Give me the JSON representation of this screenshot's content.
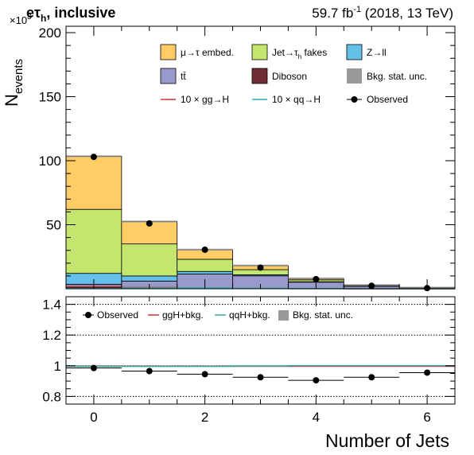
{
  "header": {
    "channel_prefix": "eτ",
    "channel_sub": "h",
    "channel_suffix": ", inclusive",
    "lumi": "59.7 fb",
    "lumi_sup": "-1",
    "lumi_suffix": " (2018, 13 TeV)"
  },
  "chart_data": [
    {
      "type": "bar",
      "stacked": true,
      "xlabel": "Number of Jets",
      "ylabel": "N",
      "ylabel_sub": "events",
      "y_multiplier_base": "×10",
      "y_multiplier_exp": "3",
      "ylim": [
        0,
        205
      ],
      "xlim": [
        -0.5,
        6.5
      ],
      "x_ticks": [
        0,
        2,
        4,
        6
      ],
      "y_ticks": [
        50,
        100,
        150,
        200
      ],
      "x": [
        0,
        1,
        2,
        3,
        4,
        5,
        6
      ],
      "series": [
        {
          "name": "Diboson",
          "color": "#6f2d35",
          "values": [
            1.0,
            0.8,
            0.5,
            0.3,
            0.15,
            0.05,
            0.02
          ]
        },
        {
          "name": "tt̄",
          "color": "#9999cc",
          "values": [
            2.5,
            5.2,
            11.0,
            9.8,
            5.0,
            1.8,
            0.6
          ]
        },
        {
          "name": "Z→ll",
          "color": "#64c0e8",
          "values": [
            8.5,
            4.0,
            2.0,
            0.8,
            0.3,
            0.1,
            0.03
          ]
        },
        {
          "name": "Jet→τ_h fakes",
          "color": "#c4e66f",
          "values": [
            50.0,
            25.0,
            9.5,
            4.0,
            1.5,
            0.5,
            0.15
          ]
        },
        {
          "name": "μ→τ embed.",
          "color": "#ffcc66",
          "values": [
            41.5,
            17.5,
            7.5,
            3.2,
            1.1,
            0.4,
            0.1
          ]
        }
      ],
      "signals": [
        {
          "name": "10×gg→H",
          "color": "#cc3333",
          "values": [
            1.8,
            1.0,
            0.5,
            0.2,
            0.08,
            0.03,
            0.01
          ]
        },
        {
          "name": "10×qq→H",
          "color": "#33aaaa",
          "values": [
            0.3,
            0.6,
            0.6,
            0.4,
            0.2,
            0.07,
            0.02
          ]
        }
      ],
      "observed": {
        "name": "Observed",
        "values": [
          103,
          51,
          30.5,
          16.5,
          7.5,
          2.3,
          0.5
        ]
      },
      "legend": [
        {
          "label": "μ→τ embed.",
          "kind": "fill",
          "color": "#ffcc66"
        },
        {
          "label": "Jet→τ",
          "sub": "h",
          "suffix": " fakes",
          "kind": "fill",
          "color": "#c4e66f"
        },
        {
          "label": "Z→ll",
          "kind": "fill",
          "color": "#64c0e8"
        },
        {
          "label": "tt̄",
          "kind": "fill",
          "color": "#9999cc"
        },
        {
          "label": "Diboson",
          "kind": "fill",
          "color": "#6f2d35"
        },
        {
          "label": "Bkg. stat. unc.",
          "kind": "fill",
          "color": "#999999"
        },
        {
          "label": "10 × gg→H",
          "kind": "line",
          "color": "#cc3333"
        },
        {
          "label": "10 × qq→H",
          "kind": "line",
          "color": "#33aaaa"
        },
        {
          "label": "Observed",
          "kind": "marker",
          "color": "#000000"
        }
      ]
    },
    {
      "type": "scatter",
      "panel": "ratio",
      "ylim": [
        0.75,
        1.45
      ],
      "y_ticks": [
        0.8,
        1,
        1.2,
        1.4
      ],
      "y_tick_labels": [
        "0.8",
        "1",
        "1.2",
        "1.4"
      ],
      "x": [
        0,
        1,
        2,
        3,
        4,
        5,
        6
      ],
      "observed_ratio": [
        0.985,
        0.965,
        0.945,
        0.925,
        0.905,
        0.925,
        0.955
      ],
      "gg_ratio": [
        0.996,
        0.996,
        0.996,
        0.996,
        0.996,
        0.996,
        0.996
      ],
      "qq_ratio": [
        0.996,
        0.996,
        0.996,
        0.998,
        1.0,
        1.0,
        1.0
      ],
      "legend": [
        {
          "label": "Observed",
          "kind": "marker",
          "color": "#000000"
        },
        {
          "label": "ggH+bkg.",
          "kind": "line",
          "color": "#cc3333"
        },
        {
          "label": "qqH+bkg.",
          "kind": "line",
          "color": "#33aaaa"
        },
        {
          "label": "Bkg. stat. unc.",
          "kind": "fill",
          "color": "#999999"
        }
      ]
    }
  ]
}
